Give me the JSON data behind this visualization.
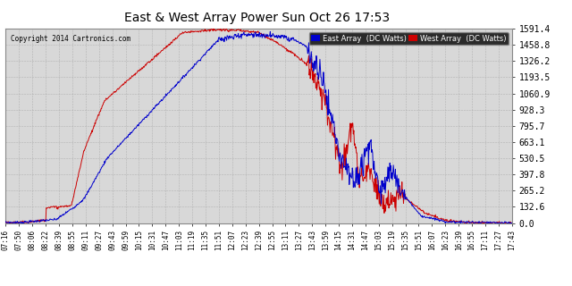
{
  "title": "East & West Array Power Sun Oct 26 17:53",
  "copyright": "Copyright 2014 Cartronics.com",
  "legend_east": "East Array  (DC Watts)",
  "legend_west": "West Array  (DC Watts)",
  "east_color": "#0000cc",
  "west_color": "#cc0000",
  "background_color": "#ffffff",
  "grid_color": "#aaaaaa",
  "plot_bg_color": "#d8d8d8",
  "ylim": [
    0.0,
    1591.4
  ],
  "yticks": [
    0.0,
    132.6,
    265.2,
    397.8,
    530.5,
    663.1,
    795.7,
    928.3,
    1060.9,
    1193.5,
    1326.2,
    1458.8,
    1591.4
  ],
  "xtick_labels": [
    "07:16",
    "07:50",
    "08:06",
    "08:22",
    "08:39",
    "08:55",
    "09:11",
    "09:27",
    "09:43",
    "09:59",
    "10:15",
    "10:31",
    "10:47",
    "11:03",
    "11:19",
    "11:35",
    "11:51",
    "12:07",
    "12:23",
    "12:39",
    "12:55",
    "13:11",
    "13:27",
    "13:43",
    "13:59",
    "14:15",
    "14:31",
    "14:47",
    "15:03",
    "15:19",
    "15:35",
    "15:51",
    "16:07",
    "16:23",
    "16:39",
    "16:55",
    "17:11",
    "17:27",
    "17:43"
  ]
}
